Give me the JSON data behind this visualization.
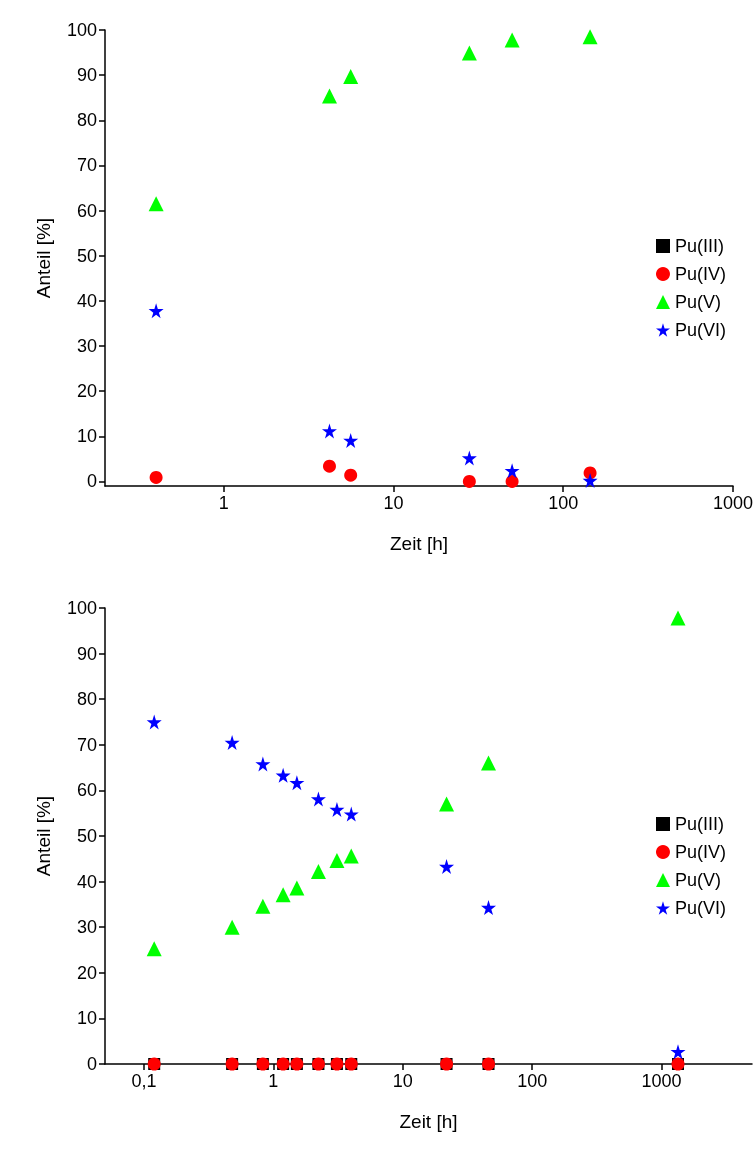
{
  "chart_data": [
    {
      "type": "scatter",
      "xlabel": "Zeit [h]",
      "ylabel": "Anteil [%]",
      "log": "x",
      "xlim": [
        0.2,
        1000
      ],
      "xticks": [
        1,
        10,
        100,
        1000
      ],
      "ylim": [
        -1,
        100
      ],
      "yticks": [
        0,
        10,
        20,
        30,
        40,
        50,
        60,
        70,
        80,
        90,
        100
      ],
      "grid": false,
      "legend": "right",
      "x": [
        0.4,
        4.2,
        5.6,
        28,
        50,
        144
      ],
      "series": [
        {
          "name": "Pu(III)",
          "color": "#000000",
          "marker": "square",
          "values": [
            null,
            null,
            null,
            null,
            null,
            null
          ]
        },
        {
          "name": "Pu(IV)",
          "color": "#ff0000",
          "marker": "circle",
          "values": [
            0.9,
            3.4,
            1.4,
            0,
            0,
            1.9
          ]
        },
        {
          "name": "Pu(V)",
          "color": "#00ff00",
          "marker": "triangle",
          "values": [
            61.5,
            85.4,
            89.7,
            94.9,
            97.8,
            98.5
          ]
        },
        {
          "name": "Pu(VI)",
          "color": "#0000ff",
          "marker": "star",
          "values": [
            37.8,
            11.2,
            9.1,
            5.2,
            2.4,
            0.2
          ]
        }
      ]
    },
    {
      "type": "scatter",
      "xlabel": "Zeit [h]",
      "ylabel": "Anteil [%]",
      "log": "x",
      "xlim": [
        0.05,
        5000
      ],
      "xticks": [
        {
          "value": 0.1,
          "label": "0,1"
        },
        1,
        10,
        100,
        1000
      ],
      "ylim": [
        0,
        100
      ],
      "yticks": [
        0,
        10,
        20,
        30,
        40,
        50,
        60,
        70,
        80,
        90,
        100
      ],
      "grid": false,
      "legend": "right",
      "x": [
        0.12,
        0.48,
        0.83,
        1.19,
        1.52,
        2.23,
        3.1,
        4.0,
        21.8,
        46,
        1340
      ],
      "series": [
        {
          "name": "Pu(III)",
          "color": "#000000",
          "marker": "square",
          "values": [
            0,
            0,
            0,
            0,
            0,
            0,
            0,
            0,
            0,
            0,
            0
          ]
        },
        {
          "name": "Pu(IV)",
          "color": "#ff0000",
          "marker": "circle",
          "values": [
            0,
            0,
            0,
            0,
            0,
            0,
            0,
            0,
            0,
            0,
            0
          ]
        },
        {
          "name": "Pu(V)",
          "color": "#00ff00",
          "marker": "triangle",
          "values": [
            25.3,
            30,
            34.6,
            37.1,
            38.6,
            42.2,
            44.6,
            45.6,
            57,
            66,
            97.8
          ]
        },
        {
          "name": "Pu(VI)",
          "color": "#0000ff",
          "marker": "star",
          "values": [
            75,
            70.5,
            65.8,
            63.3,
            61.7,
            58.1,
            55.8,
            54.8,
            43.3,
            34.3,
            2.7
          ]
        }
      ]
    }
  ]
}
